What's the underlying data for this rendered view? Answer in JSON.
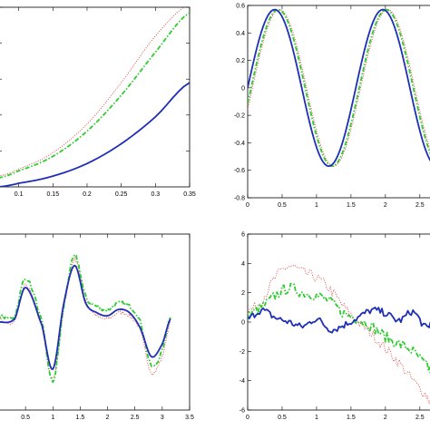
{
  "colors": {
    "solid": "#1f2fb5",
    "dashdot": "#2ecc2e",
    "dotted": "#e05050"
  },
  "chart_data": [
    {
      "type": "line",
      "panel": "top-left",
      "xlim": [
        0.07,
        0.35
      ],
      "ylim": [
        0,
        1
      ],
      "xticks": [
        0.1,
        0.15,
        0.2,
        0.25,
        0.3,
        0.35
      ],
      "xtick_labels": [
        "0.1",
        "0.15",
        "0.2",
        "0.25",
        "0.3",
        "0.35"
      ],
      "yticks": [
        0.2,
        0.4,
        0.6,
        0.8,
        1.0
      ],
      "ytick_labels": [],
      "x": [
        0.07,
        0.1,
        0.15,
        0.2,
        0.25,
        0.3,
        0.35
      ],
      "series": [
        {
          "style": "solid",
          "values": [
            0.0,
            0.02,
            0.06,
            0.13,
            0.24,
            0.39,
            0.58
          ]
        },
        {
          "style": "dashdot",
          "values": [
            0.05,
            0.09,
            0.17,
            0.31,
            0.51,
            0.75,
            0.97
          ]
        },
        {
          "style": "dotted",
          "values": [
            0.06,
            0.1,
            0.19,
            0.35,
            0.58,
            0.84,
            1.02
          ]
        }
      ]
    },
    {
      "type": "line",
      "panel": "top-right",
      "xlim": [
        0,
        2.7
      ],
      "ylim": [
        -0.8,
        0.6
      ],
      "xticks": [
        0,
        0.5,
        1,
        1.5,
        2,
        2.5
      ],
      "xtick_labels": [
        "0",
        "0.5",
        "1",
        "1.5",
        "2",
        "2.5"
      ],
      "yticks": [
        -0.8,
        -0.6,
        -0.4,
        -0.2,
        0,
        0.2,
        0.4,
        0.6
      ],
      "ytick_labels": [
        "-0.8",
        "-0.6",
        "-0.4",
        "-0.2",
        "0",
        "0.2",
        "0.4",
        "0.6"
      ],
      "series": [
        {
          "style": "solid",
          "function": "0.57*sin(2*pi*x/1.57)",
          "samples": 120
        },
        {
          "style": "dashdot",
          "function": "0.57*sin(2*pi*(x-0.05)/1.57)",
          "samples": 120
        },
        {
          "style": "dotted",
          "function": "0.57*sin(2*pi*(x-0.07)/1.57)",
          "samples": 120
        }
      ]
    },
    {
      "type": "line",
      "panel": "bottom-left",
      "xlim": [
        0,
        3.5
      ],
      "ylim": [
        -1.4,
        1.4
      ],
      "xticks": [
        0.5,
        1,
        1.5,
        2,
        2.5,
        3,
        3.5
      ],
      "xtick_labels": [
        "0.5",
        "1",
        "1.5",
        "2",
        "2.5",
        "3",
        "3.5"
      ],
      "yticks": [],
      "ytick_labels": [],
      "x": [
        0,
        0.3,
        0.5,
        0.8,
        1.0,
        1.2,
        1.4,
        1.6,
        1.8,
        2.0,
        2.2,
        2.4,
        2.6,
        2.8,
        3.0,
        3.15
      ],
      "series": [
        {
          "style": "solid",
          "values": [
            0.0,
            0.05,
            0.55,
            -0.05,
            -0.75,
            0.3,
            0.9,
            0.3,
            0.15,
            0.1,
            0.2,
            0.15,
            -0.1,
            -0.55,
            -0.35,
            0.05
          ]
        },
        {
          "style": "dashdot",
          "values": [
            0.1,
            0.1,
            0.7,
            0.0,
            -0.95,
            0.25,
            1.05,
            0.4,
            0.25,
            0.2,
            0.3,
            0.25,
            0.0,
            -0.7,
            -0.45,
            0.1
          ]
        },
        {
          "style": "dotted",
          "values": [
            0.05,
            0.0,
            0.6,
            -0.1,
            -0.9,
            0.2,
            1.0,
            0.35,
            0.1,
            0.05,
            0.15,
            0.1,
            -0.15,
            -0.8,
            -0.55,
            0.0
          ]
        }
      ]
    },
    {
      "type": "line",
      "panel": "bottom-right",
      "xlim": [
        0,
        2.7
      ],
      "ylim": [
        -6,
        6
      ],
      "xticks": [
        0,
        0.5,
        1,
        1.5,
        2,
        2.5
      ],
      "xtick_labels": [
        "0",
        "0.5",
        "1",
        "1.5",
        "2",
        "2.5"
      ],
      "yticks": [
        -6,
        -4,
        -2,
        0,
        2,
        4,
        6
      ],
      "ytick_labels": [
        "-6",
        "-4",
        "-2",
        "0",
        "2",
        "4",
        "6"
      ],
      "x": [
        0,
        0.2,
        0.4,
        0.6,
        0.8,
        1.0,
        1.2,
        1.4,
        1.6,
        1.8,
        2.0,
        2.2,
        2.4,
        2.6,
        2.7
      ],
      "series": [
        {
          "style": "solid",
          "values": [
            0.2,
            0.8,
            0.3,
            0.0,
            -0.3,
            0.2,
            -0.5,
            -0.2,
            0.3,
            0.8,
            0.6,
            0.1,
            0.7,
            -0.4,
            0.3
          ]
        },
        {
          "style": "dashdot",
          "values": [
            0.5,
            1.0,
            1.8,
            2.3,
            2.0,
            1.8,
            1.4,
            0.6,
            0.2,
            -0.3,
            -1.0,
            -1.5,
            -2.0,
            -3.0,
            -3.5
          ]
        },
        {
          "style": "dotted",
          "values": [
            0.7,
            1.5,
            3.0,
            3.8,
            3.4,
            3.0,
            2.2,
            1.0,
            0.0,
            -0.8,
            -1.8,
            -2.8,
            -4.0,
            -5.0,
            -5.8
          ]
        }
      ]
    }
  ]
}
